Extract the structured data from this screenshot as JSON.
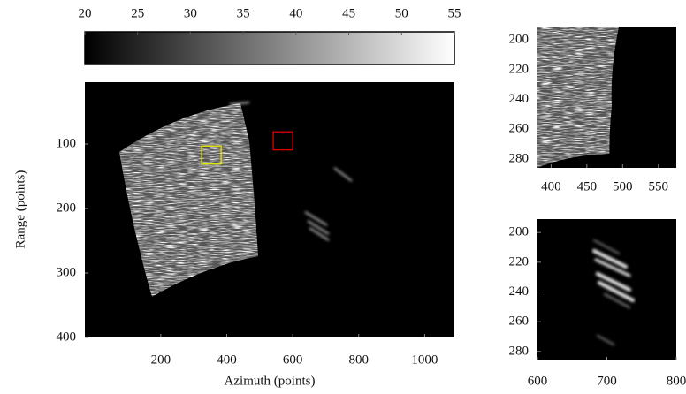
{
  "chart_data": [
    {
      "type": "colorbar",
      "colormap": [
        "#000000",
        "#ffffff"
      ],
      "xlim": [
        20,
        55
      ],
      "xticks": [
        20,
        25,
        30,
        35,
        40,
        45,
        50,
        55
      ]
    },
    {
      "type": "image",
      "xlabel": "Azimuth (points)",
      "ylabel": "Range (points)",
      "xlim": [
        -30,
        1090
      ],
      "ylim": [
        4,
        400
      ],
      "xticks": [
        200,
        400,
        600,
        800,
        1000
      ],
      "yticks": [
        100,
        200,
        300,
        400
      ],
      "regions": [
        {
          "color": "#e6e600",
          "x": [
            324,
            383
          ],
          "y": [
            103,
            131
          ]
        },
        {
          "color": "#e00000",
          "x": [
            541,
            600
          ],
          "y": [
            81,
            109
          ]
        }
      ]
    },
    {
      "type": "image",
      "xlim": [
        381,
        575
      ],
      "ylim": [
        191,
        286
      ],
      "xticks": [
        400,
        450,
        500,
        550
      ],
      "yticks": [
        200,
        220,
        240,
        260,
        280
      ]
    },
    {
      "type": "image",
      "xlim": [
        600,
        800
      ],
      "ylim": [
        191,
        286
      ],
      "xticks": [
        600,
        700,
        800
      ],
      "yticks": [
        200,
        220,
        240,
        260,
        280
      ]
    }
  ]
}
